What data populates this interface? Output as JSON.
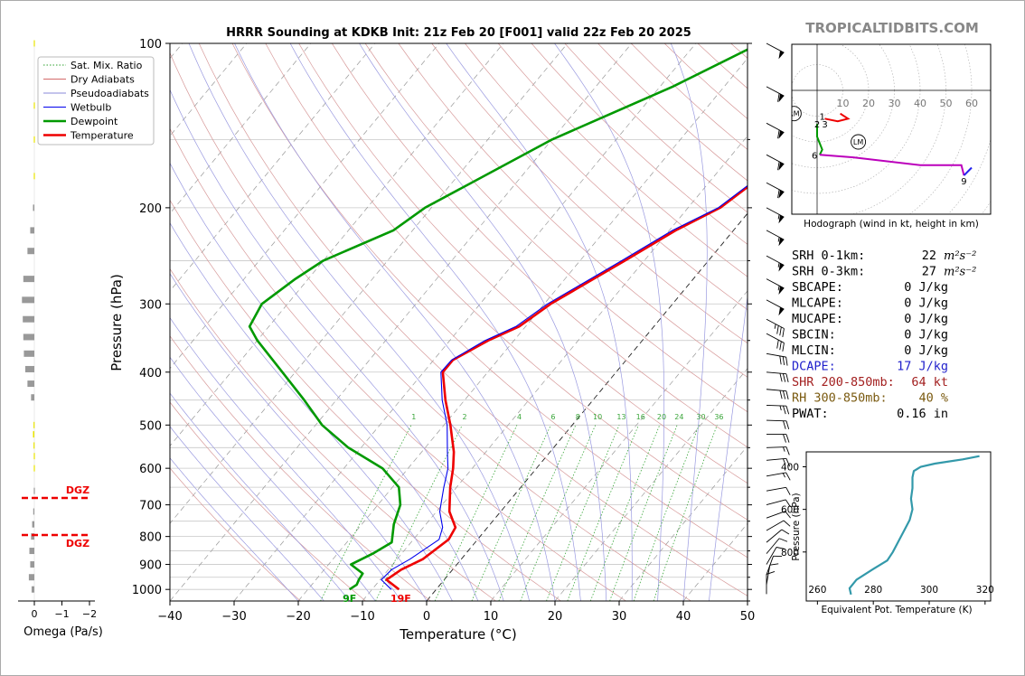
{
  "chart_data": [
    {
      "type": "line",
      "title": "HRRR Sounding at KDKB Init: 21z Feb 20 [F001] valid 22z Feb 20 2025",
      "xlabel": "Temperature (°C)",
      "ylabel": "Pressure (hPa)",
      "xlim": [
        -40,
        50
      ],
      "ylim": [
        1050,
        100
      ],
      "y_scale": "log",
      "x_ticks": [
        -40,
        -30,
        -20,
        -10,
        0,
        10,
        20,
        30,
        40,
        50
      ],
      "x_tick_labels": [
        "−40",
        "−30",
        "−20",
        "−10",
        "0",
        "10",
        "20",
        "30",
        "40",
        "50"
      ],
      "y_ticks": [
        100,
        200,
        300,
        400,
        500,
        600,
        700,
        800,
        900,
        1000
      ],
      "legend": {
        "placement": "top-left",
        "entries": [
          {
            "label": "Sat. Mix. Ratio",
            "color": "#2ca02c",
            "style": "dotted"
          },
          {
            "label": "Dry Adiabats",
            "color": "#d46a6a",
            "style": "solid"
          },
          {
            "label": "Pseudoadiabats",
            "color": "#8a8ad8",
            "style": "solid"
          },
          {
            "label": "Wetbulb",
            "color": "#0000ee",
            "style": "solid"
          },
          {
            "label": "Dewpoint",
            "color": "#009900",
            "style": "solid"
          },
          {
            "label": "Temperature",
            "color": "#ee0000",
            "style": "solid"
          }
        ]
      },
      "mixing_ratio_labels": [
        "1",
        "2",
        "4",
        "6",
        "8",
        "10",
        "13",
        "16",
        "20",
        "24",
        "30",
        "36"
      ],
      "surface_labels": {
        "dewpoint": "9F",
        "temperature": "19F"
      },
      "series": [
        {
          "name": "Temperature",
          "color": "#ee0000",
          "points": [
            [
              -5.8,
              1000
            ],
            [
              -9,
              960
            ],
            [
              -8,
              920
            ],
            [
              -6,
              880
            ],
            [
              -4.5,
              810
            ],
            [
              -5,
              770
            ],
            [
              -8,
              720
            ],
            [
              -11,
              650
            ],
            [
              -13,
              600
            ],
            [
              -15,
              560
            ],
            [
              -19,
              500
            ],
            [
              -23,
              450
            ],
            [
              -27,
              400
            ],
            [
              -27,
              380
            ],
            [
              -24,
              350
            ],
            [
              -21,
              330
            ],
            [
              -19,
              300
            ],
            [
              -13,
              250
            ],
            [
              -9,
              220
            ],
            [
              -5,
              200
            ],
            [
              -2,
              170
            ],
            [
              1,
              150
            ],
            [
              4,
              130
            ],
            [
              7,
              115
            ],
            [
              9.5,
              100
            ]
          ]
        },
        {
          "name": "Wetbulb",
          "color": "#0000ee",
          "points": [
            [
              -7,
              1000
            ],
            [
              -9.8,
              960
            ],
            [
              -9.5,
              920
            ],
            [
              -8,
              880
            ],
            [
              -6,
              810
            ],
            [
              -7,
              770
            ],
            [
              -9.5,
              720
            ],
            [
              -12,
              650
            ],
            [
              -13.8,
              600
            ],
            [
              -16,
              560
            ],
            [
              -19.5,
              500
            ],
            [
              -23.5,
              450
            ],
            [
              -27.3,
              400
            ],
            [
              -27.2,
              380
            ],
            [
              -24.5,
              350
            ],
            [
              -21.5,
              330
            ],
            [
              -19.5,
              300
            ],
            [
              -13.5,
              250
            ],
            [
              -9.5,
              220
            ],
            [
              -5.3,
              200
            ],
            [
              -2.3,
              170
            ],
            [
              0.7,
              150
            ],
            [
              3.7,
              130
            ],
            [
              6.7,
              115
            ],
            [
              9.2,
              100
            ]
          ]
        },
        {
          "name": "Dewpoint",
          "color": "#009900",
          "points": [
            [
              -13.5,
              1000
            ],
            [
              -13,
              980
            ],
            [
              -13.3,
              960
            ],
            [
              -13.5,
              935
            ],
            [
              -16.5,
              900
            ],
            [
              -14.5,
              860
            ],
            [
              -13,
              820
            ],
            [
              -15,
              760
            ],
            [
              -16.5,
              700
            ],
            [
              -19,
              650
            ],
            [
              -24,
              600
            ],
            [
              -32,
              550
            ],
            [
              -39,
              500
            ],
            [
              -45,
              450
            ],
            [
              -52,
              400
            ],
            [
              -60,
              350
            ],
            [
              -63,
              330
            ],
            [
              -64,
              300
            ],
            [
              -62,
              270
            ],
            [
              -60,
              250
            ],
            [
              -53,
              220
            ],
            [
              -51,
              200
            ],
            [
              -40,
              150
            ],
            [
              -28,
              120
            ],
            [
              -20,
              100
            ]
          ]
        }
      ]
    },
    {
      "type": "bar",
      "xlabel": "Omega (Pa/s)",
      "x_ticks": [
        0,
        -1,
        -2
      ],
      "x_tick_labels": [
        "0",
        "−1",
        "−2"
      ],
      "dgz_label": "DGZ",
      "dgz_pressures": [
        680,
        795
      ],
      "bars": [
        {
          "p": 100,
          "w": 0.02,
          "c": "#e8e400"
        },
        {
          "p": 130,
          "w": 0.02,
          "c": "#e8e400"
        },
        {
          "p": 150,
          "w": 0.02,
          "c": "#e8e400"
        },
        {
          "p": 175,
          "w": 0.02,
          "c": "#e8e400"
        },
        {
          "p": 200,
          "w": 0.05,
          "c": "#999999"
        },
        {
          "p": 220,
          "w": 0.15,
          "c": "#999999"
        },
        {
          "p": 240,
          "w": 0.25,
          "c": "#999999"
        },
        {
          "p": 270,
          "w": 0.4,
          "c": "#999999"
        },
        {
          "p": 295,
          "w": 0.45,
          "c": "#999999"
        },
        {
          "p": 320,
          "w": 0.42,
          "c": "#999999"
        },
        {
          "p": 345,
          "w": 0.4,
          "c": "#999999"
        },
        {
          "p": 370,
          "w": 0.38,
          "c": "#999999"
        },
        {
          "p": 395,
          "w": 0.33,
          "c": "#999999"
        },
        {
          "p": 420,
          "w": 0.25,
          "c": "#999999"
        },
        {
          "p": 445,
          "w": 0.12,
          "c": "#999999"
        },
        {
          "p": 500,
          "w": 0.03,
          "c": "#e8e400"
        },
        {
          "p": 520,
          "w": 0.05,
          "c": "#e8e400"
        },
        {
          "p": 545,
          "w": 0.03,
          "c": "#e8e400"
        },
        {
          "p": 570,
          "w": 0.02,
          "c": "#e8e400"
        },
        {
          "p": 600,
          "w": 0.02,
          "c": "#e8e400"
        },
        {
          "p": 660,
          "w": 0.02,
          "c": "#999999"
        },
        {
          "p": 720,
          "w": 0.04,
          "c": "#999999"
        },
        {
          "p": 760,
          "w": 0.08,
          "c": "#999999"
        },
        {
          "p": 800,
          "w": 0.12,
          "c": "#999999"
        },
        {
          "p": 850,
          "w": 0.18,
          "c": "#999999"
        },
        {
          "p": 900,
          "w": 0.15,
          "c": "#999999"
        },
        {
          "p": 950,
          "w": 0.2,
          "c": "#999999"
        },
        {
          "p": 1000,
          "w": 0.1,
          "c": "#999999"
        }
      ]
    },
    {
      "type": "line",
      "title": "Hodograph (wind in kt, height in km)",
      "ring_labels": [
        "10",
        "20",
        "30",
        "40",
        "50",
        "60"
      ],
      "markers": [
        {
          "label": "RM",
          "u": -9,
          "v": -9
        },
        {
          "label": "LM",
          "u": 16,
          "v": -20
        }
      ],
      "height_labels": [
        {
          "label": "1",
          "u": 2,
          "v": -10
        },
        {
          "label": "2",
          "u": 0,
          "v": -13
        },
        {
          "label": "3",
          "u": 3,
          "v": -13
        },
        {
          "label": "6",
          "u": -1,
          "v": -25
        },
        {
          "label": "9",
          "u": 57,
          "v": -35
        }
      ],
      "segments": [
        {
          "color": "#ee0000",
          "points": [
            [
              9,
              -9
            ],
            [
              12,
              -11
            ],
            [
              8,
              -12
            ],
            [
              3,
              -11
            ]
          ]
        },
        {
          "color": "#009900",
          "points": [
            [
              0,
              -13
            ],
            [
              0,
              -18
            ],
            [
              2,
              -23
            ],
            [
              1,
              -25
            ]
          ]
        },
        {
          "color": "#bb00bb",
          "points": [
            [
              1,
              -25
            ],
            [
              14,
              -26
            ],
            [
              40,
              -29
            ],
            [
              56,
              -29
            ],
            [
              57,
              -33
            ]
          ]
        },
        {
          "color": "#2222ee",
          "points": [
            [
              57,
              -33
            ],
            [
              60,
              -30
            ]
          ]
        }
      ]
    },
    {
      "type": "line",
      "xlabel": "Equivalent Pot. Temperature (K)",
      "ylabel": "Pressure (hPa)",
      "xlim": [
        256,
        322
      ],
      "x_ticks": [
        260,
        280,
        300,
        320
      ],
      "y_ticks": [
        400,
        600,
        800
      ],
      "bottom_label": "260",
      "series": [
        {
          "name": "theta-e",
          "color": "#3399aa",
          "points": [
            [
              272,
              1000
            ],
            [
              271.5,
              970
            ],
            [
              274,
              930
            ],
            [
              280,
              880
            ],
            [
              285,
              840
            ],
            [
              287,
              800
            ],
            [
              289,
              750
            ],
            [
              291,
              700
            ],
            [
              293,
              650
            ],
            [
              294,
              600
            ],
            [
              293.5,
              550
            ],
            [
              294,
              500
            ],
            [
              294,
              450
            ],
            [
              294.5,
              420
            ],
            [
              297,
              400
            ],
            [
              302,
              385
            ],
            [
              312,
              365
            ],
            [
              318,
              350
            ]
          ]
        }
      ]
    }
  ],
  "brand": "TROPICALTIDBITS.COM",
  "indices": [
    {
      "label": "SRH 0-1km:",
      "value": "22",
      "unit": "m²s⁻²",
      "color": "#000000"
    },
    {
      "label": "SRH 0-3km:",
      "value": "27",
      "unit": "m²s⁻²",
      "color": "#000000"
    },
    {
      "label": "SBCAPE:",
      "value": "0 J/kg",
      "unit": "",
      "color": "#000000"
    },
    {
      "label": "MLCAPE:",
      "value": "0 J/kg",
      "unit": "",
      "color": "#000000"
    },
    {
      "label": "MUCAPE:",
      "value": "0 J/kg",
      "unit": "",
      "color": "#000000"
    },
    {
      "label": "SBCIN:",
      "value": "0 J/kg",
      "unit": "",
      "color": "#000000"
    },
    {
      "label": "MLCIN:",
      "value": "0 J/kg",
      "unit": "",
      "color": "#000000"
    },
    {
      "label": "DCAPE:",
      "value": "17 J/kg",
      "unit": "",
      "color": "#2222cc"
    },
    {
      "label": "SHR 200-850mb:",
      "value": "64 kt",
      "unit": "",
      "color": "#a32020"
    },
    {
      "label": "RH 300-850mb:",
      "value": "40 %",
      "unit": "",
      "color": "#7a5a10"
    },
    {
      "label": "PWAT:",
      "value": "0.16 in",
      "unit": "",
      "color": "#000000"
    }
  ]
}
